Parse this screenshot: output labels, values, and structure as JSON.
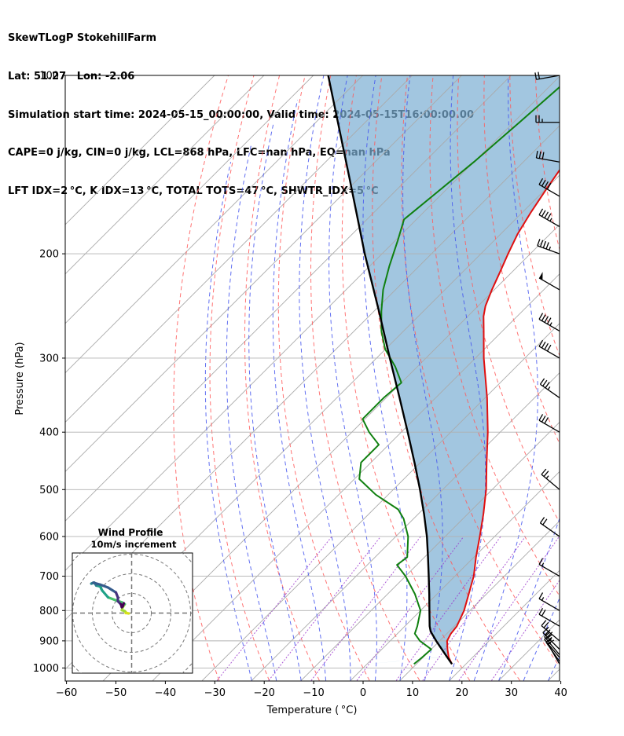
{
  "header": {
    "line1": "SkewTLogP StokehillFarm",
    "line2": "Lat: 51.27   Lon: -2.06",
    "line3": "Simulation start time: 2024-05-15_00:00:00, Valid time: 2024-05-15T16:00:00.00",
    "line4": "CAPE=0 j/kg, CIN=0 j/kg, LCL=868 hPa, LFC=nan hPa, EQ=nan hPa",
    "line5": "LFT IDX=2 °C, K IDX=13 °C, TOTAL TOTS=47 °C, SHWTR_IDX=5 °C"
  },
  "inset": {
    "title": "Wind Profile",
    "subtitle": "10m/s increment"
  },
  "chart_data": {
    "type": "line",
    "xlabel": "Temperature ( °C)",
    "ylabel": "Pressure (hPa)",
    "xlim": [
      -60,
      40
    ],
    "ylim": [
      1050,
      100
    ],
    "y_scale": "log",
    "skew": true,
    "grid": true,
    "x_ticks": [
      "−60",
      "−50",
      "−40",
      "−30",
      "−20",
      "−10",
      "0",
      "10",
      "20",
      "30",
      "40"
    ],
    "y_ticks": [
      "100",
      "200",
      "300",
      "400",
      "500",
      "600",
      "700",
      "800",
      "900",
      "1000"
    ],
    "colors": {
      "temperature": "#e01010",
      "dewpoint": "#108010",
      "parcel": "#000000",
      "cape_fill": "#7aaed3",
      "dry_adiabats": "#ff5a5a",
      "moist_adiabats": "#4455ee",
      "mixing_ratio": "#9933cc",
      "isotherms": "#aaaaaa"
    },
    "series": [
      {
        "name": "temperature",
        "pressure": [
          985,
          960,
          930,
          900,
          875,
          850,
          800,
          750,
          700,
          650,
          600,
          550,
          500,
          450,
          400,
          350,
          300,
          270,
          255,
          245,
          230,
          215,
          200,
          185,
          170,
          155,
          140,
          125,
          115,
          100
        ],
        "values": [
          17.2,
          15.2,
          13.3,
          11.5,
          10.8,
          10.5,
          8.8,
          6.4,
          3.8,
          0.4,
          -3.0,
          -6.8,
          -11.2,
          -16.6,
          -22.5,
          -29.6,
          -38.3,
          -43.8,
          -46.8,
          -48.5,
          -50.5,
          -52.4,
          -54.5,
          -56.6,
          -58.3,
          -59.9,
          -61.5,
          -63.5,
          -65.3,
          -67.5
        ]
      },
      {
        "name": "dewpoint",
        "pressure": [
          985,
          960,
          930,
          900,
          875,
          850,
          800,
          750,
          700,
          670,
          650,
          600,
          560,
          540,
          510,
          480,
          450,
          420,
          400,
          380,
          350,
          330,
          310,
          290,
          270,
          250,
          230,
          210,
          190,
          175,
          160,
          140,
          120,
          100
        ],
        "values": [
          9.5,
          9.8,
          10.0,
          6.0,
          3.5,
          2.5,
          0.0,
          -4.5,
          -10.0,
          -14.0,
          -13.5,
          -17.5,
          -22.0,
          -25.0,
          -32.5,
          -39.0,
          -42.0,
          -42.0,
          -46.5,
          -50.5,
          -50.5,
          -50.0,
          -54.5,
          -60.0,
          -64.5,
          -68.5,
          -72.5,
          -76.0,
          -79.5,
          -82.5,
          -81.5,
          -80.0,
          -78.8,
          -77.5
        ]
      },
      {
        "name": "parcel",
        "pressure": [
          985,
          950,
          900,
          868,
          850,
          800,
          750,
          700,
          650,
          600,
          550,
          500,
          450,
          400,
          350,
          300,
          250,
          200,
          150,
          100
        ],
        "values": [
          17.2,
          14.0,
          9.3,
          6.3,
          5.0,
          1.8,
          -1.6,
          -5.3,
          -9.3,
          -13.7,
          -18.8,
          -24.6,
          -31.2,
          -38.7,
          -47.3,
          -57.3,
          -69.0,
          -83.5,
          -101.5,
          -127.0
        ]
      }
    ],
    "wind_barbs": {
      "pressure": [
        985,
        975,
        960,
        950,
        930,
        900,
        850,
        800,
        700,
        600,
        500,
        400,
        350,
        300,
        270,
        230,
        200,
        180,
        160,
        140,
        120,
        100
      ],
      "speed_kt": [
        10,
        15,
        20,
        25,
        30,
        25,
        20,
        15,
        15,
        20,
        25,
        30,
        35,
        40,
        45,
        50,
        45,
        45,
        40,
        30,
        25,
        20
      ],
      "direction_deg": [
        330,
        325,
        320,
        320,
        315,
        310,
        300,
        300,
        300,
        305,
        310,
        300,
        305,
        300,
        300,
        300,
        290,
        300,
        300,
        280,
        270,
        260
      ]
    },
    "hodograph": {
      "title": "Wind Profile",
      "subtitle": "10m/s increment",
      "rings_ms": [
        10,
        20,
        30,
        40
      ],
      "u": [
        -1.5,
        -2.5,
        -3.0,
        -3.0,
        -3.5,
        -5.0,
        -4.5,
        -3.5,
        -5.0,
        -8.0,
        -12.0,
        -15.0,
        -16.0,
        -18.0,
        -19.0,
        -20.5,
        -19.5,
        -16.0,
        -12.0,
        -8.0,
        -7.0,
        -7.0,
        -5.5,
        -5.0,
        -4.5,
        -4.0
      ],
      "v": [
        -0.2,
        0.0,
        0.0,
        0.5,
        1.0,
        1.5,
        3.0,
        4.5,
        5.5,
        6.5,
        8.0,
        11.5,
        13.5,
        14.0,
        15.5,
        15.0,
        15.5,
        14.5,
        13.0,
        10.5,
        8.0,
        6.0,
        4.5,
        3.0,
        3.5,
        5.0
      ]
    }
  }
}
